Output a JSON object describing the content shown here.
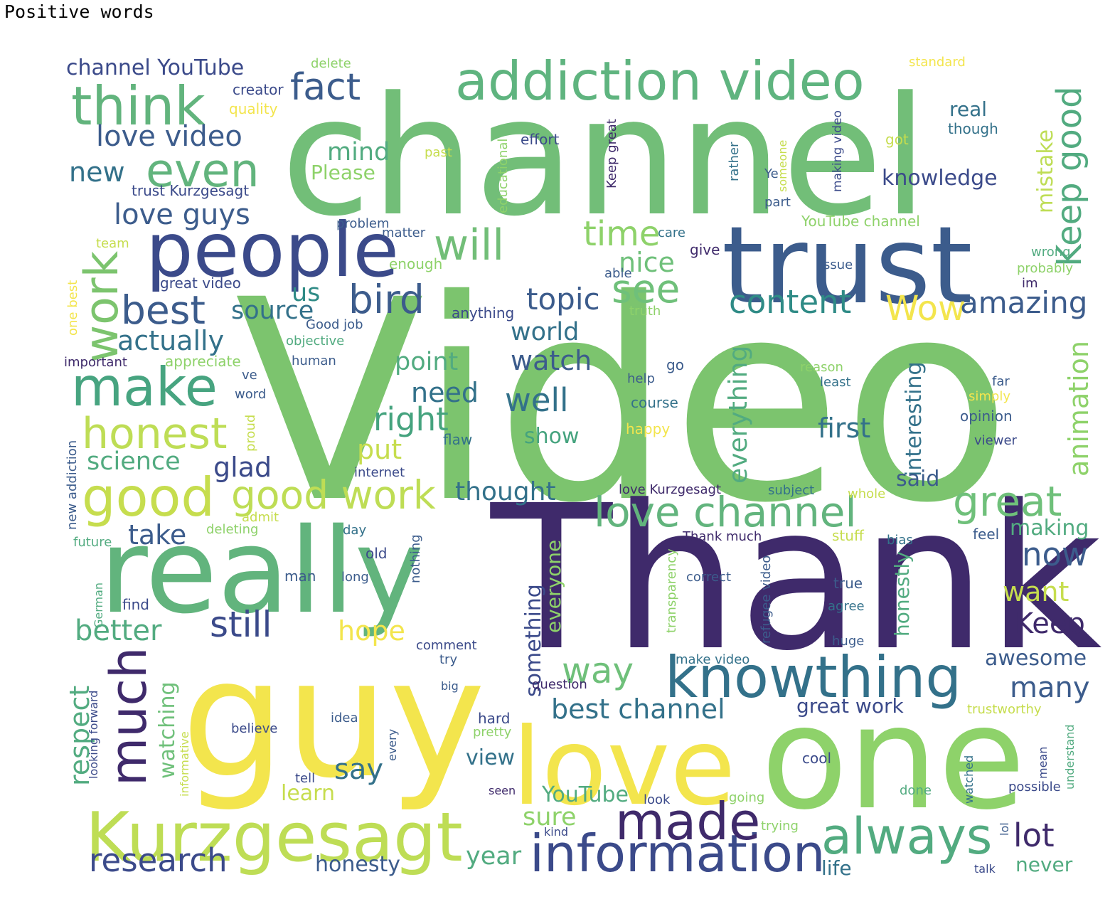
{
  "title": "Positive words",
  "palette": {
    "dark_purple": "#3f2a6b",
    "indigo": "#3b4a8a",
    "slate_blue": "#3c5c8c",
    "teal_blue": "#33718a",
    "teal": "#2f8b86",
    "sea_green": "#45a37e",
    "green": "#6fc07a",
    "light_green": "#8ed26a",
    "lime": "#c6dd4e",
    "yellow": "#f3e54d"
  },
  "words": [
    {
      "text": "Video",
      "color": "#7cc46e"
    },
    {
      "text": "channel",
      "color": "#72be78"
    },
    {
      "text": "Thank",
      "color": "#3f2a6b"
    },
    {
      "text": "guy",
      "color": "#f3e54d"
    },
    {
      "text": "one",
      "color": "#8ed26a"
    },
    {
      "text": "really",
      "color": "#62b47d"
    },
    {
      "text": "love",
      "color": "#f3e54d"
    },
    {
      "text": "trust",
      "color": "#3c5c8c"
    },
    {
      "text": "Kurzgesagt",
      "color": "#bedd55"
    },
    {
      "text": "people",
      "color": "#3b4a8a"
    },
    {
      "text": "addiction video",
      "color": "#5fb47f"
    },
    {
      "text": "knowthing",
      "color": "#33718a"
    },
    {
      "text": "information",
      "color": "#3b4a8a"
    },
    {
      "text": "always",
      "color": "#52ab80"
    },
    {
      "text": "made",
      "color": "#3f2a6b"
    },
    {
      "text": "make",
      "color": "#47a480"
    },
    {
      "text": "good",
      "color": "#c6dd4e"
    },
    {
      "text": "much",
      "color": "#3f2a6b"
    },
    {
      "text": "think",
      "color": "#62b47d"
    },
    {
      "text": "even",
      "color": "#62b47d"
    },
    {
      "text": "work",
      "color": "#7cc46e"
    },
    {
      "text": "honest",
      "color": "#bedd55"
    },
    {
      "text": "best",
      "color": "#3c5c8c"
    },
    {
      "text": "bird",
      "color": "#3c5c8c"
    },
    {
      "text": "will",
      "color": "#72be78"
    },
    {
      "text": "see",
      "color": "#6fc07a"
    },
    {
      "text": "love channel",
      "color": "#62b47d"
    },
    {
      "text": "great",
      "color": "#6fc07a"
    },
    {
      "text": "good work",
      "color": "#bedd55"
    },
    {
      "text": "research",
      "color": "#3b4a8a"
    },
    {
      "text": "still",
      "color": "#3b4a8a"
    },
    {
      "text": "fact",
      "color": "#3c5c8c"
    },
    {
      "text": "time",
      "color": "#8ed26a"
    },
    {
      "text": "content",
      "color": "#2f8b86"
    },
    {
      "text": "Wow",
      "color": "#f3e54d"
    },
    {
      "text": "amazing",
      "color": "#3c5c8c"
    },
    {
      "text": "Keep good",
      "color": "#52ab80"
    },
    {
      "text": "mistake",
      "color": "#bedd55"
    },
    {
      "text": "love video",
      "color": "#3c5c8c"
    },
    {
      "text": "love guys",
      "color": "#3c5c8c"
    },
    {
      "text": "channel YouTube",
      "color": "#3b4a8a"
    },
    {
      "text": "new",
      "color": "#33718a"
    },
    {
      "text": "mind",
      "color": "#52ab80"
    },
    {
      "text": "Please",
      "color": "#8ed26a"
    },
    {
      "text": "knowledge",
      "color": "#3b4a8a"
    },
    {
      "text": "real",
      "color": "#33718a"
    },
    {
      "text": "topic",
      "color": "#3c5c8c"
    },
    {
      "text": "nice",
      "color": "#6fc07a"
    },
    {
      "text": "source",
      "color": "#33718a"
    },
    {
      "text": "actually",
      "color": "#33718a"
    },
    {
      "text": "us",
      "color": "#2f8b86"
    },
    {
      "text": "world",
      "color": "#33718a"
    },
    {
      "text": "watch",
      "color": "#3c5c8c"
    },
    {
      "text": "well",
      "color": "#33718a"
    },
    {
      "text": "point",
      "color": "#52ab80"
    },
    {
      "text": "need",
      "color": "#33718a"
    },
    {
      "text": "right",
      "color": "#45a37e"
    },
    {
      "text": "first",
      "color": "#33718a"
    },
    {
      "text": "science",
      "color": "#52ab80"
    },
    {
      "text": "glad",
      "color": "#3b4a8a"
    },
    {
      "text": "put",
      "color": "#c6dd4e"
    },
    {
      "text": "thought",
      "color": "#33718a"
    },
    {
      "text": "take",
      "color": "#3c5c8c"
    },
    {
      "text": "everything",
      "color": "#52ab80"
    },
    {
      "text": "interesting",
      "color": "#33718a"
    },
    {
      "text": "animation",
      "color": "#8ed26a"
    },
    {
      "text": "said",
      "color": "#3c5c8c"
    },
    {
      "text": "now",
      "color": "#3c5c8c"
    },
    {
      "text": "making",
      "color": "#52ab80"
    },
    {
      "text": "want",
      "color": "#c6dd4e"
    },
    {
      "text": "Keep",
      "color": "#3f2a6b"
    },
    {
      "text": "better",
      "color": "#52ab80"
    },
    {
      "text": "hope",
      "color": "#f3e54d"
    },
    {
      "text": "way",
      "color": "#6fc07a"
    },
    {
      "text": "something",
      "color": "#3b4a8a"
    },
    {
      "text": "everyone",
      "color": "#8ed26a"
    },
    {
      "text": "show",
      "color": "#45a37e"
    },
    {
      "text": "honestly",
      "color": "#52ab80"
    },
    {
      "text": "awesome",
      "color": "#3c5c8c"
    },
    {
      "text": "many",
      "color": "#3c5c8c"
    },
    {
      "text": "lot",
      "color": "#3f2a6b"
    },
    {
      "text": "best channel",
      "color": "#33718a"
    },
    {
      "text": "great work",
      "color": "#3b4a8a"
    },
    {
      "text": "respect",
      "color": "#52ab80"
    },
    {
      "text": "watching",
      "color": "#6fc07a"
    },
    {
      "text": "say",
      "color": "#33718a"
    },
    {
      "text": "learn",
      "color": "#c6dd4e"
    },
    {
      "text": "view",
      "color": "#33718a"
    },
    {
      "text": "YouTube",
      "color": "#52ab80"
    },
    {
      "text": "sure",
      "color": "#8ed26a"
    },
    {
      "text": "year",
      "color": "#52ab80"
    },
    {
      "text": "honesty",
      "color": "#3c5c8c"
    },
    {
      "text": "life",
      "color": "#33718a"
    },
    {
      "text": "never",
      "color": "#52ab80"
    },
    {
      "text": "creator",
      "color": "#3b4a8a"
    },
    {
      "text": "quality",
      "color": "#f3e54d"
    },
    {
      "text": "delete",
      "color": "#8ed26a"
    },
    {
      "text": "effort",
      "color": "#3b4a8a"
    },
    {
      "text": "past",
      "color": "#c6dd4e"
    },
    {
      "text": "educational",
      "color": "#8ed26a"
    },
    {
      "text": "Keep great",
      "color": "#3f2a6b"
    },
    {
      "text": "rather",
      "color": "#33718a"
    },
    {
      "text": "someone",
      "color": "#c6dd4e"
    },
    {
      "text": "making video",
      "color": "#3b4a8a"
    },
    {
      "text": "Ye",
      "color": "#3c5c8c"
    },
    {
      "text": "part",
      "color": "#3c5c8c"
    },
    {
      "text": "got",
      "color": "#c6dd4e"
    },
    {
      "text": "though",
      "color": "#33718a"
    },
    {
      "text": "standard",
      "color": "#f3e54d"
    },
    {
      "text": "trust Kurzgesagt",
      "color": "#3b4a8a"
    },
    {
      "text": "problem",
      "color": "#3c5c8c"
    },
    {
      "text": "care",
      "color": "#33718a"
    },
    {
      "text": "YouTube channel",
      "color": "#8ed26a"
    },
    {
      "text": "team",
      "color": "#c6dd4e"
    },
    {
      "text": "matter",
      "color": "#3c5c8c"
    },
    {
      "text": "give",
      "color": "#3f2a6b"
    },
    {
      "text": "enough",
      "color": "#8ed26a"
    },
    {
      "text": "able",
      "color": "#3c5c8c"
    },
    {
      "text": "issue",
      "color": "#3c5c8c"
    },
    {
      "text": "wrong",
      "color": "#52ab80"
    },
    {
      "text": "probably",
      "color": "#8ed26a"
    },
    {
      "text": "im",
      "color": "#3f2a6b"
    },
    {
      "text": "great video",
      "color": "#3b4a8a"
    },
    {
      "text": "one best",
      "color": "#f3e54d"
    },
    {
      "text": "anything",
      "color": "#3b4a8a"
    },
    {
      "text": "truth",
      "color": "#8ed26a"
    },
    {
      "text": "Good job",
      "color": "#3c5c8c"
    },
    {
      "text": "objective",
      "color": "#52ab80"
    },
    {
      "text": "important",
      "color": "#3f2a6b"
    },
    {
      "text": "appreciate",
      "color": "#8ed26a"
    },
    {
      "text": "human",
      "color": "#3c5c8c"
    },
    {
      "text": "help",
      "color": "#3c5c8c"
    },
    {
      "text": "go",
      "color": "#3c5c8c"
    },
    {
      "text": "reason",
      "color": "#8ed26a"
    },
    {
      "text": "least",
      "color": "#33718a"
    },
    {
      "text": "far",
      "color": "#3c5c8c"
    },
    {
      "text": "simply",
      "color": "#f3e54d"
    },
    {
      "text": "ve",
      "color": "#3c5c8c"
    },
    {
      "text": "word",
      "color": "#3c5c8c"
    },
    {
      "text": "course",
      "color": "#33718a"
    },
    {
      "text": "happy",
      "color": "#f3e54d"
    },
    {
      "text": "opinion",
      "color": "#3c5c8c"
    },
    {
      "text": "viewer",
      "color": "#3b4a8a"
    },
    {
      "text": "new addiction",
      "color": "#3c5c8c"
    },
    {
      "text": "proud",
      "color": "#c6dd4e"
    },
    {
      "text": "flaw",
      "color": "#33718a"
    },
    {
      "text": "internet",
      "color": "#3b4a8a"
    },
    {
      "text": "love Kurzgesagt",
      "color": "#3f2a6b"
    },
    {
      "text": "subject",
      "color": "#33718a"
    },
    {
      "text": "whole",
      "color": "#c6dd4e"
    },
    {
      "text": "admit",
      "color": "#c6dd4e"
    },
    {
      "text": "deleting",
      "color": "#8ed26a"
    },
    {
      "text": "future",
      "color": "#52ab80"
    },
    {
      "text": "day",
      "color": "#33718a"
    },
    {
      "text": "old",
      "color": "#3b4a8a"
    },
    {
      "text": "nothing",
      "color": "#3c5c8c"
    },
    {
      "text": "transparency",
      "color": "#8ed26a"
    },
    {
      "text": "Thank much",
      "color": "#3f2a6b"
    },
    {
      "text": "refugee video",
      "color": "#3c5c8c"
    },
    {
      "text": "stuff",
      "color": "#c6dd4e"
    },
    {
      "text": "bias",
      "color": "#33718a"
    },
    {
      "text": "feel",
      "color": "#3c5c8c"
    },
    {
      "text": "German",
      "color": "#52ab80"
    },
    {
      "text": "man",
      "color": "#3c5c8c"
    },
    {
      "text": "long",
      "color": "#3c5c8c"
    },
    {
      "text": "correct",
      "color": "#3c5c8c"
    },
    {
      "text": "true",
      "color": "#3c5c8c"
    },
    {
      "text": "find",
      "color": "#3b4a8a"
    },
    {
      "text": "agree",
      "color": "#33718a"
    },
    {
      "text": "comment",
      "color": "#3b4a8a"
    },
    {
      "text": "try",
      "color": "#3c5c8c"
    },
    {
      "text": "make video",
      "color": "#33718a"
    },
    {
      "text": "huge",
      "color": "#3c5c8c"
    },
    {
      "text": "big",
      "color": "#3c5c8c"
    },
    {
      "text": "question",
      "color": "#3f2a6b"
    },
    {
      "text": "trustworthy",
      "color": "#c6dd4e"
    },
    {
      "text": "looking forward",
      "color": "#3b4a8a"
    },
    {
      "text": "informative",
      "color": "#c6dd4e"
    },
    {
      "text": "idea",
      "color": "#3c5c8c"
    },
    {
      "text": "hard",
      "color": "#3b4a8a"
    },
    {
      "text": "pretty",
      "color": "#8ed26a"
    },
    {
      "text": "every",
      "color": "#3c5c8c"
    },
    {
      "text": "believe",
      "color": "#3b4a8a"
    },
    {
      "text": "understand",
      "color": "#52ab80"
    },
    {
      "text": "watched",
      "color": "#33718a"
    },
    {
      "text": "mean",
      "color": "#3b4a8a"
    },
    {
      "text": "cool",
      "color": "#3b4a8a"
    },
    {
      "text": "tell",
      "color": "#3b4a8a"
    },
    {
      "text": "seen",
      "color": "#3f2a6b"
    },
    {
      "text": "look",
      "color": "#3b4a8a"
    },
    {
      "text": "going",
      "color": "#8ed26a"
    },
    {
      "text": "done",
      "color": "#52ab80"
    },
    {
      "text": "possible",
      "color": "#3b4a8a"
    },
    {
      "text": "lol",
      "color": "#3c5c8c"
    },
    {
      "text": "trying",
      "color": "#8ed26a"
    },
    {
      "text": "kind",
      "color": "#3b4a8a"
    },
    {
      "text": "talk",
      "color": "#3b4a8a"
    }
  ]
}
